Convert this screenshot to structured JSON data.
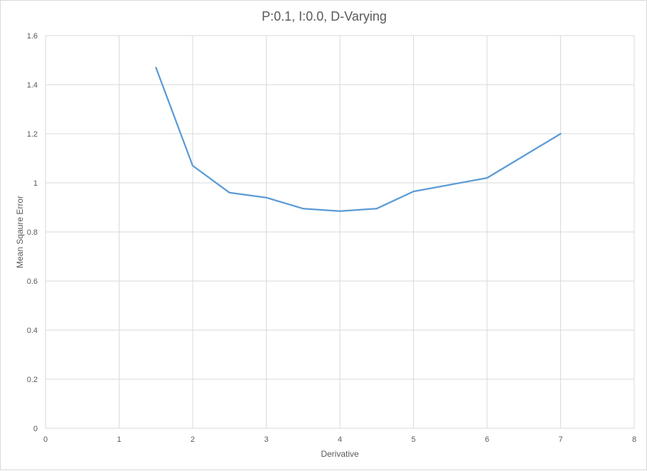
{
  "chart_data": {
    "type": "line",
    "title": "P:0.1, I:0.0, D-Varying",
    "xlabel": "Derivative",
    "ylabel": "Mean Sqaure Error",
    "xlim": [
      0,
      8
    ],
    "ylim": [
      0,
      1.6
    ],
    "x_ticks": [
      "0",
      "1",
      "2",
      "3",
      "4",
      "5",
      "6",
      "7",
      "8"
    ],
    "y_ticks": [
      "0",
      "0.2",
      "0.4",
      "0.6",
      "0.8",
      "1",
      "1.2",
      "1.4",
      "1.6"
    ],
    "grid": true,
    "legend": "none",
    "series": [
      {
        "color": "#5b9bd5",
        "x": [
          1.5,
          2,
          2.5,
          3,
          3.5,
          4,
          4.5,
          5,
          6,
          7
        ],
        "y": [
          1.47,
          1.07,
          0.96,
          0.94,
          0.895,
          0.885,
          0.895,
          0.965,
          1.02,
          1.2
        ]
      }
    ]
  }
}
